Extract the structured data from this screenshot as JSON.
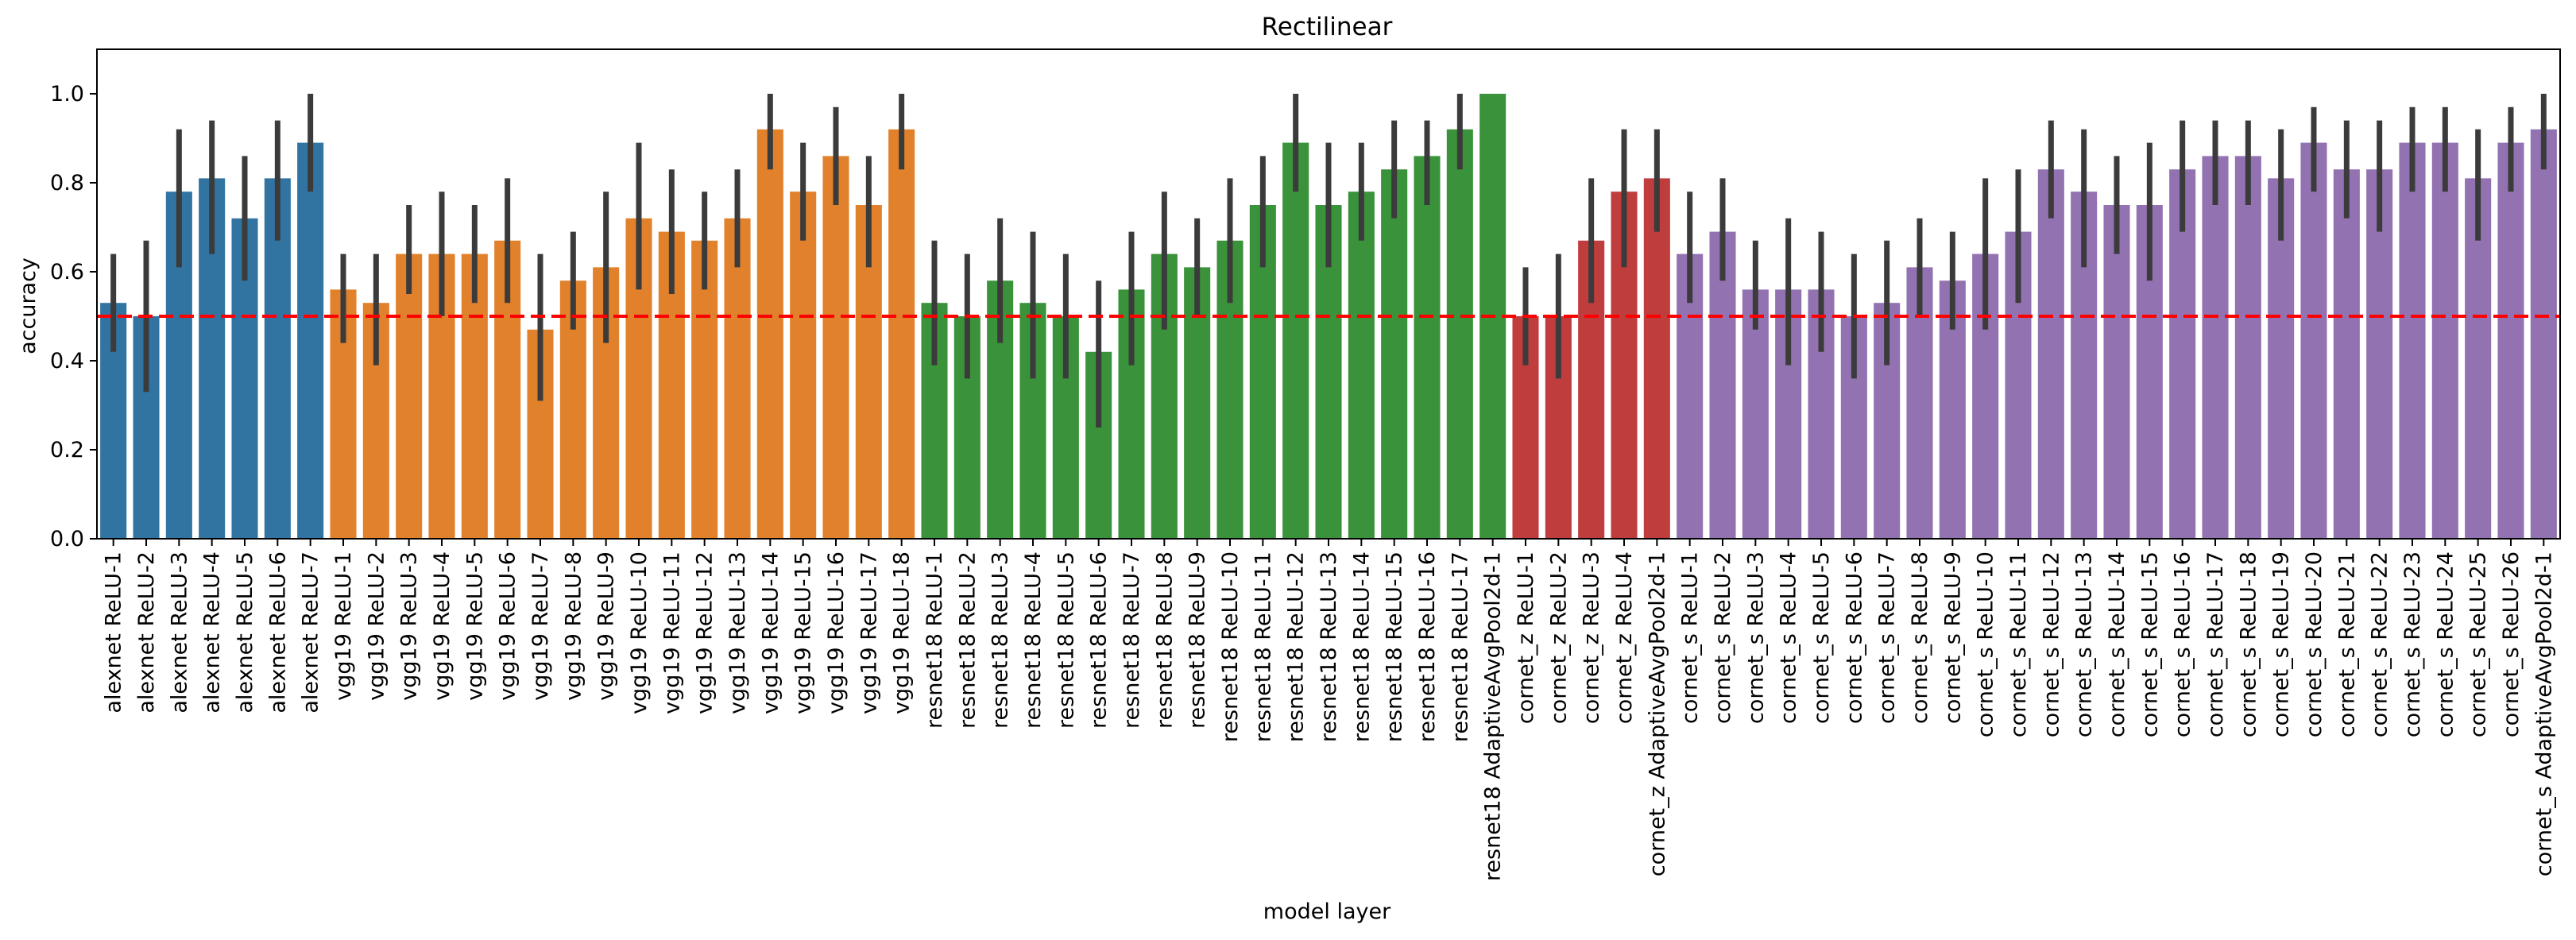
{
  "chart_data": {
    "type": "bar",
    "title": "Rectilinear",
    "xlabel": "model layer",
    "ylabel": "accuracy",
    "ylim": [
      0,
      1.1
    ],
    "yticks": [
      0.0,
      0.2,
      0.4,
      0.6,
      0.8,
      1.0
    ],
    "ytick_labels": [
      "0.0",
      "0.2",
      "0.4",
      "0.6",
      "0.8",
      "1.0"
    ],
    "reference_line": 0.5,
    "reference_line_color": "#ff0000",
    "error_bar_color": "#3b3b3b",
    "grid": false,
    "legend": "none",
    "groups": [
      {
        "name": "alexnet",
        "color": "#3274a1",
        "start": 0,
        "count": 7
      },
      {
        "name": "vgg19",
        "color": "#e1812c",
        "start": 7,
        "count": 18
      },
      {
        "name": "resnet18",
        "color": "#3a923a",
        "start": 25,
        "count": 18
      },
      {
        "name": "cornet_z",
        "color": "#c03d3e",
        "start": 43,
        "count": 5
      },
      {
        "name": "cornet_s",
        "color": "#9372b2",
        "start": 48,
        "count": 27
      }
    ],
    "categories": [
      "alexnet ReLU-1",
      "alexnet ReLU-2",
      "alexnet ReLU-3",
      "alexnet ReLU-4",
      "alexnet ReLU-5",
      "alexnet ReLU-6",
      "alexnet ReLU-7",
      "vgg19 ReLU-1",
      "vgg19 ReLU-2",
      "vgg19 ReLU-3",
      "vgg19 ReLU-4",
      "vgg19 ReLU-5",
      "vgg19 ReLU-6",
      "vgg19 ReLU-7",
      "vgg19 ReLU-8",
      "vgg19 ReLU-9",
      "vgg19 ReLU-10",
      "vgg19 ReLU-11",
      "vgg19 ReLU-12",
      "vgg19 ReLU-13",
      "vgg19 ReLU-14",
      "vgg19 ReLU-15",
      "vgg19 ReLU-16",
      "vgg19 ReLU-17",
      "vgg19 ReLU-18",
      "resnet18 ReLU-1",
      "resnet18 ReLU-2",
      "resnet18 ReLU-3",
      "resnet18 ReLU-4",
      "resnet18 ReLU-5",
      "resnet18 ReLU-6",
      "resnet18 ReLU-7",
      "resnet18 ReLU-8",
      "resnet18 ReLU-9",
      "resnet18 ReLU-10",
      "resnet18 ReLU-11",
      "resnet18 ReLU-12",
      "resnet18 ReLU-13",
      "resnet18 ReLU-14",
      "resnet18 ReLU-15",
      "resnet18 ReLU-16",
      "resnet18 ReLU-17",
      "resnet18 AdaptiveAvgPool2d-1",
      "cornet_z ReLU-1",
      "cornet_z ReLU-2",
      "cornet_z ReLU-3",
      "cornet_z ReLU-4",
      "cornet_z AdaptiveAvgPool2d-1",
      "cornet_s ReLU-1",
      "cornet_s ReLU-2",
      "cornet_s ReLU-3",
      "cornet_s ReLU-4",
      "cornet_s ReLU-5",
      "cornet_s ReLU-6",
      "cornet_s ReLU-7",
      "cornet_s ReLU-8",
      "cornet_s ReLU-9",
      "cornet_s ReLU-10",
      "cornet_s ReLU-11",
      "cornet_s ReLU-12",
      "cornet_s ReLU-13",
      "cornet_s ReLU-14",
      "cornet_s ReLU-15",
      "cornet_s ReLU-16",
      "cornet_s ReLU-17",
      "cornet_s ReLU-18",
      "cornet_s ReLU-19",
      "cornet_s ReLU-20",
      "cornet_s ReLU-21",
      "cornet_s ReLU-22",
      "cornet_s ReLU-23",
      "cornet_s ReLU-24",
      "cornet_s ReLU-25",
      "cornet_s ReLU-26",
      "cornet_s AdaptiveAvgPool2d-1"
    ],
    "values": [
      0.53,
      0.5,
      0.78,
      0.81,
      0.72,
      0.81,
      0.89,
      0.56,
      0.53,
      0.64,
      0.64,
      0.64,
      0.67,
      0.47,
      0.58,
      0.61,
      0.72,
      0.69,
      0.67,
      0.72,
      0.92,
      0.78,
      0.86,
      0.75,
      0.92,
      0.53,
      0.5,
      0.58,
      0.53,
      0.5,
      0.42,
      0.56,
      0.64,
      0.61,
      0.67,
      0.75,
      0.89,
      0.75,
      0.78,
      0.83,
      0.86,
      0.92,
      1.0,
      0.5,
      0.5,
      0.67,
      0.78,
      0.81,
      0.64,
      0.69,
      0.56,
      0.56,
      0.56,
      0.5,
      0.53,
      0.61,
      0.58,
      0.64,
      0.69,
      0.83,
      0.78,
      0.75,
      0.75,
      0.83,
      0.86,
      0.86,
      0.81,
      0.89,
      0.83,
      0.83,
      0.89,
      0.89,
      0.81,
      0.89,
      0.92
    ],
    "ci_low": [
      0.42,
      0.33,
      0.61,
      0.64,
      0.58,
      0.67,
      0.78,
      0.44,
      0.39,
      0.55,
      0.5,
      0.53,
      0.53,
      0.31,
      0.47,
      0.44,
      0.56,
      0.55,
      0.56,
      0.61,
      0.83,
      0.67,
      0.75,
      0.61,
      0.83,
      0.39,
      0.36,
      0.44,
      0.36,
      0.36,
      0.25,
      0.39,
      0.47,
      0.5,
      0.53,
      0.61,
      0.78,
      0.61,
      0.67,
      0.72,
      0.75,
      0.83,
      1.0,
      0.39,
      0.36,
      0.53,
      0.61,
      0.69,
      0.53,
      0.58,
      0.47,
      0.39,
      0.42,
      0.36,
      0.39,
      0.5,
      0.47,
      0.47,
      0.53,
      0.72,
      0.61,
      0.64,
      0.58,
      0.69,
      0.75,
      0.75,
      0.67,
      0.78,
      0.72,
      0.69,
      0.78,
      0.78,
      0.67,
      0.78,
      0.83
    ],
    "ci_high": [
      0.64,
      0.67,
      0.92,
      0.94,
      0.86,
      0.94,
      1.0,
      0.64,
      0.64,
      0.75,
      0.78,
      0.75,
      0.81,
      0.64,
      0.69,
      0.78,
      0.89,
      0.83,
      0.78,
      0.83,
      1.0,
      0.89,
      0.97,
      0.86,
      1.0,
      0.67,
      0.64,
      0.72,
      0.69,
      0.64,
      0.58,
      0.69,
      0.78,
      0.72,
      0.81,
      0.86,
      1.0,
      0.89,
      0.89,
      0.94,
      0.94,
      1.0,
      1.0,
      0.61,
      0.64,
      0.81,
      0.92,
      0.92,
      0.78,
      0.81,
      0.67,
      0.72,
      0.69,
      0.64,
      0.67,
      0.72,
      0.69,
      0.81,
      0.83,
      0.94,
      0.92,
      0.86,
      0.89,
      0.94,
      0.94,
      0.94,
      0.92,
      0.97,
      0.94,
      0.94,
      0.97,
      0.97,
      0.92,
      0.97,
      1.0
    ]
  }
}
